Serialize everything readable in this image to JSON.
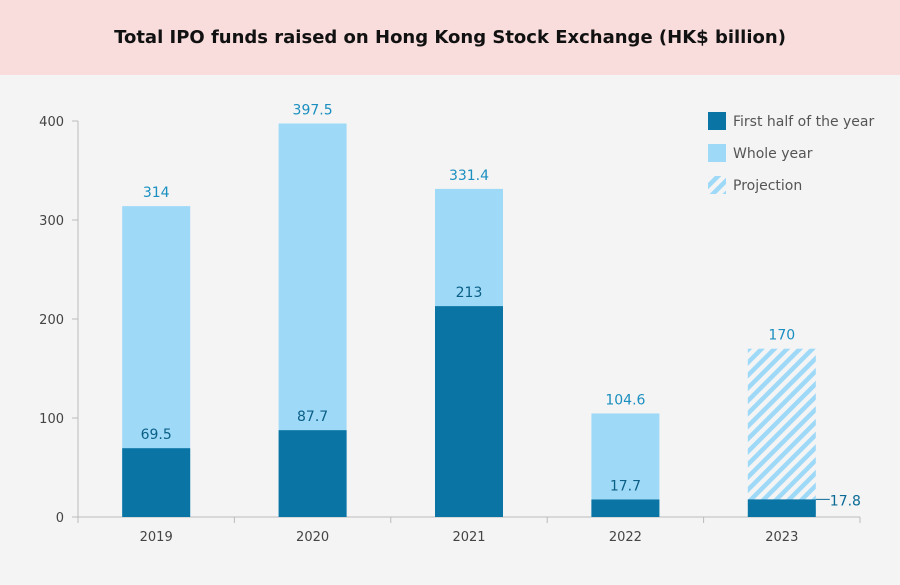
{
  "chart_data": {
    "type": "bar",
    "title": "Total IPO funds raised on Hong Kong Stock Exchange (HK$ billion)",
    "categories": [
      "2019",
      "2020",
      "2021",
      "2022",
      "2023"
    ],
    "series": [
      {
        "name": "First half of the year",
        "values": [
          69.5,
          87.7,
          213,
          17.7,
          17.8
        ],
        "labels": [
          "69.5",
          "87.7",
          "213",
          "17.7",
          "17.8"
        ],
        "color": "#0a75a4"
      },
      {
        "name": "Whole year",
        "values": [
          314,
          397.5,
          331.4,
          104.6,
          null
        ],
        "labels": [
          "314",
          "397.5",
          "331.4",
          "104.6",
          ""
        ],
        "color": "#9fd9f8"
      },
      {
        "name": "Projection",
        "values": [
          null,
          null,
          null,
          null,
          170
        ],
        "labels": [
          "",
          "",
          "",
          "",
          "170"
        ],
        "color": "#9fd9f8",
        "pattern": "hatched"
      }
    ],
    "ylim": [
      0,
      400
    ],
    "yticks": [
      "0",
      "100",
      "200",
      "300",
      "400"
    ],
    "legend": "top-right",
    "grid": false,
    "label_color": "#1a8fc0"
  }
}
